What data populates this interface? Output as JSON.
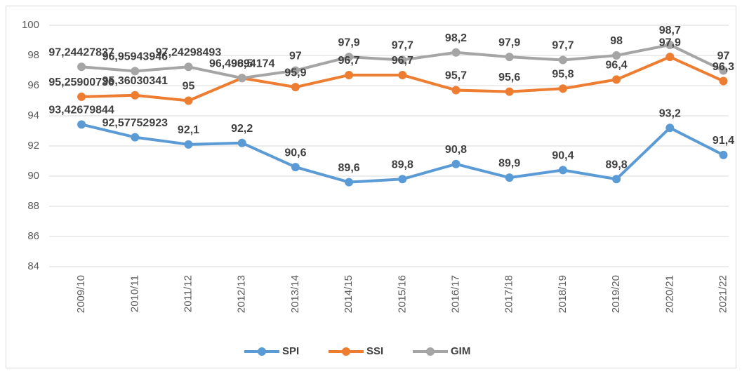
{
  "chart_data": {
    "type": "line",
    "categories": [
      "2009/10",
      "2010/11",
      "2011/12",
      "2012/13",
      "2013/14",
      "2014/15",
      "2015/16",
      "2016/17",
      "2017/18",
      "2018/19",
      "2019/20",
      "2020/21",
      "2021/22"
    ],
    "series": [
      {
        "name": "SPI",
        "color": "#5b9bd5",
        "values": [
          93.42679844,
          92.57752923,
          92.1,
          92.2,
          90.6,
          89.6,
          89.8,
          90.8,
          89.9,
          90.4,
          89.8,
          93.2,
          91.4
        ],
        "value_labels": [
          "93,42679844",
          "92,57752923",
          "92,1",
          "92,2",
          "90,6",
          "89,6",
          "89,8",
          "90,8",
          "89,9",
          "90,4",
          "89,8",
          "93,2",
          "91,4"
        ]
      },
      {
        "name": "SSI",
        "color": "#ed7d31",
        "values": [
          95.25900736,
          95.36030341,
          95,
          96.49894174,
          95.9,
          96.7,
          96.7,
          95.7,
          95.6,
          95.8,
          96.4,
          97.9,
          96.3
        ],
        "value_labels": [
          "95,25900736",
          "95,36030341",
          "95",
          "96,49894174",
          "95,9",
          "96,7",
          "96,7",
          "95,7",
          "95,6",
          "95,8",
          "96,4",
          "97,9",
          "96,3"
        ]
      },
      {
        "name": "GIM",
        "color": "#a5a5a5",
        "values": [
          97.24427837,
          96.95943946,
          97.24298493,
          96.5,
          97,
          97.9,
          97.7,
          98.2,
          97.9,
          97.7,
          98,
          98.7,
          97
        ],
        "value_labels": [
          "97,24427837",
          "96,95943946",
          "97,24298493",
          "96,5",
          "97",
          "97,9",
          "97,7",
          "98,2",
          "97,9",
          "97,7",
          "98",
          "98,7",
          "97"
        ]
      }
    ],
    "ylim": [
      84,
      100
    ],
    "yticks": [
      84,
      86,
      88,
      90,
      92,
      94,
      96,
      98,
      100
    ],
    "grid": true,
    "legend": "bottom"
  }
}
